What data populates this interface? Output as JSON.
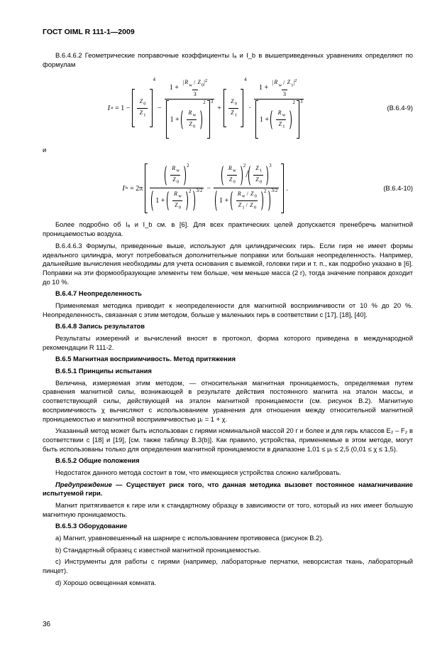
{
  "header": "ГОСТ OIML R 111-1—2009",
  "intro": "В.6.4.6.2 Геометрические поправочные коэффициенты Iₐ и I_b  в вышеприведенных уравнениях определяют по формулам",
  "eq9": {
    "left": "Iₐ = 1 −",
    "num": "(B.6.4-9)"
  },
  "conj1": "и",
  "eq10": {
    "left": "I_b = 2π",
    "num": "(B.6.4-10)"
  },
  "after_eq10": "Более подробно об Iₐ и I_b см. в [6]. Для всех практических целей допускается пренебречь магнитной проницаемостью воздуха.",
  "p_6463": "В.6.4.6.3 Формулы, приведенные выше, используют для цилиндрических гирь. Если гиря не имеет формы идеального цилиндра, могут потребоваться дополнительные поправки или большая неопределенность. Например, дальнейшие вычисления необходимы для учета основания с выемкой, головки гири и т. п., как подробно указано в [6]. Поправки на эти формообразующие элементы тем больше, чем меньше масса (2 г), тогда значение поправок доходит до 10 %.",
  "h_647": "В.6.4.7 Неопределенность",
  "p_647": "Применяемая методика приводит к неопределенности для магнитной восприимчивости от 10 % до 20 %. Неопределенность, связанная с этим методом, больше у маленьких гирь в соответствии с [17], [18], [40].",
  "h_648": "В.6.4.8 Запись результатов",
  "p_648": "Результаты измерений и вычислений вносят в протокол, форма которого приведена в международной рекомендации R 111-2.",
  "h_65": "В.6.5 Магнитная восприимчивость. Метод притяжения",
  "h_651": "В.6.5.1 Принципы испытания",
  "p_651a": "Величина, измеряемая этим методом, — относительная магнитная проницаемость, определяемая путем сравнения магнитной силы, возникающей в результате действия постоянного магнита на эталон массы, и соответствующей силы, действующей на эталон магнитной проницаемости (см. рисунок В.2). Магнитную восприимчивость χ вычисляют с использованием уравнения для отношения между относительной магнитной проницаемостью и магнитной восприимчивостью µᵣ = 1 + χ.",
  "p_651b": "Указанный метод может быть использован с гирями номинальной массой 20 г и более и для гирь классов E₂ – F₂ в соответствии с [18] и [19], [см. также таблицу B.3(b)]. Как правило, устройства, применяемые в этом методе, могут быть использованы только для определения магнитной проницаемости в диапазоне 1,01 ≤ µᵣ ≤ 2,5 (0,01 ≤ χ ≤ 1,5).",
  "h_652": "В.6.5.2 Общие положения",
  "p_652": "Недостаток данного метода состоит в том, что имеющиеся устройства сложно калибровать.",
  "warn_label": "Предупреждение",
  "warn_body": " — Существует риск того, что данная методика вызовет постоянное намагничивание испытуемой гири.",
  "p_after_warn": "Магнит притягивается к гире или к стандартному образцу в зависимости от того, который из них имеет большую магнитную проницаемость.",
  "h_653": "В.6.5.3 Оборудование",
  "li_a": "a) Магнит, уравновешенный на шарнире с использованием противовеса (рисунок В.2).",
  "li_b": "b) Стандартный образец с известной магнитной проницаемостью.",
  "li_c": "c) Инструменты для работы с гирями (например, лабораторные перчатки, неворсистая ткань, лабораторный пинцет).",
  "li_d": "d) Хорошо освещенная комната.",
  "page_num": "36"
}
